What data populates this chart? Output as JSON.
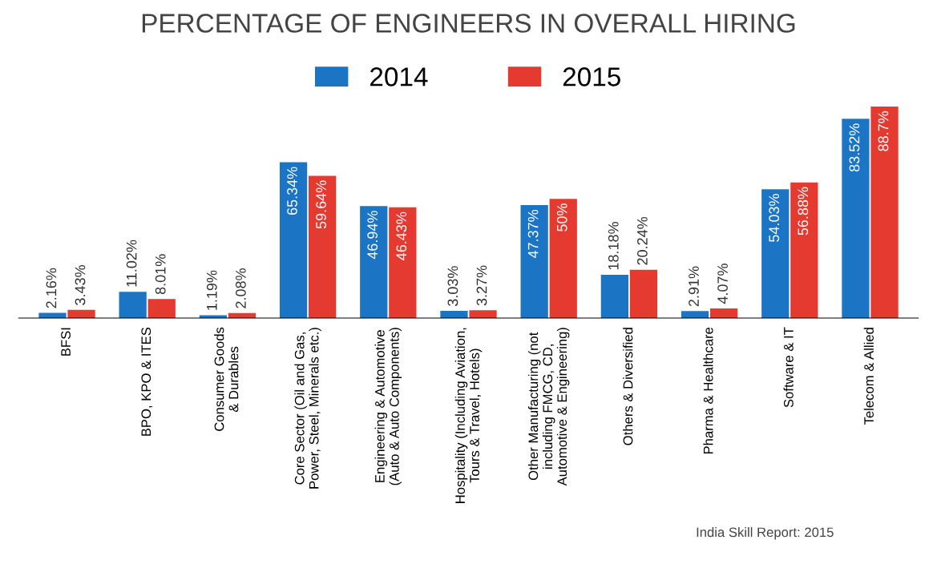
{
  "chart_data": {
    "type": "bar",
    "title": "PERCENTAGE OF ENGINEERS IN OVERALL HIRING",
    "categories": [
      "BFSI",
      "BPO, KPO & ITES",
      "Consumer Goods\n& Durables",
      "Core Sector (Oil and Gas,\nPower, Steel, Minerals etc.)",
      "Engineering & Automotive\n(Auto & Auto Components)",
      "Hospitality (Including Aviation,\nTours & Travel, Hotels)",
      "Other Manufacturing (not\nincluding FMCG, CD,\nAutomotive & Engineering)",
      "Others & Diversified",
      "Pharma & Healthcare",
      "Software & IT",
      "Telecom & Allied"
    ],
    "series": [
      {
        "name": "2014",
        "color": "#1b75c4",
        "values": [
          2.16,
          11.02,
          1.19,
          65.34,
          46.94,
          3.03,
          47.37,
          18.18,
          2.91,
          54.03,
          83.52
        ],
        "value_labels": [
          "2.16%",
          "11.02%",
          "1.19%",
          "65.34%",
          "46.94%",
          "3.03%",
          "47.37%",
          "18.18%",
          "2.91%",
          "54.03%",
          "83.52%"
        ]
      },
      {
        "name": "2015",
        "color": "#e53a2f",
        "values": [
          3.43,
          8.01,
          2.08,
          59.64,
          46.43,
          3.27,
          50,
          20.24,
          4.07,
          56.88,
          88.7
        ],
        "value_labels": [
          "3.43%",
          "8.01%",
          "2.08%",
          "59.64%",
          "46.43%",
          "3.27%",
          "50%",
          "20.24%",
          "4.07%",
          "56.88%",
          "88.7%"
        ]
      }
    ],
    "legend": "top",
    "annotations": [
      "India Skill Report: 2015"
    ]
  }
}
